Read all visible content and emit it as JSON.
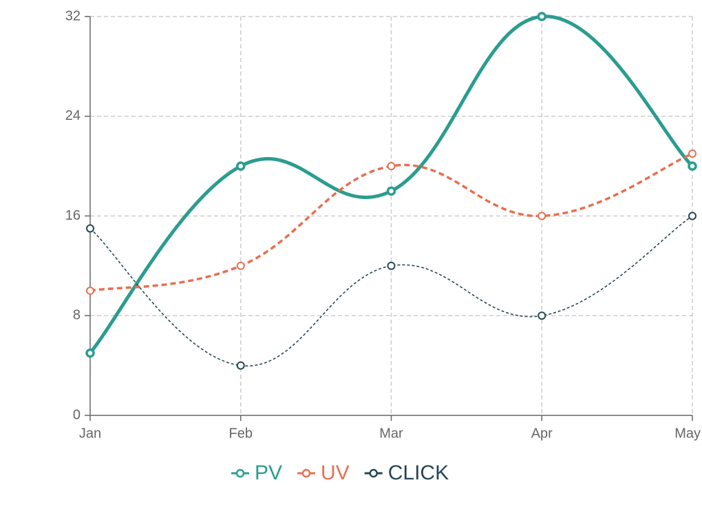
{
  "chart_data": {
    "type": "line",
    "categories": [
      "Jan",
      "Feb",
      "Mar",
      "Apr",
      "May"
    ],
    "series": [
      {
        "name": "PV",
        "color": "#2a9d8f",
        "values": [
          5,
          20,
          18,
          32,
          20
        ]
      },
      {
        "name": "UV",
        "color": "#e76f51",
        "values": [
          10,
          12,
          20,
          16,
          21
        ]
      },
      {
        "name": "CLICK",
        "color": "#264653",
        "values": [
          15,
          4,
          12,
          8,
          16
        ]
      }
    ],
    "ylim": [
      0,
      32
    ],
    "yticks": [
      0,
      8,
      16,
      24,
      32
    ],
    "grid": true,
    "legend": "bottom"
  }
}
